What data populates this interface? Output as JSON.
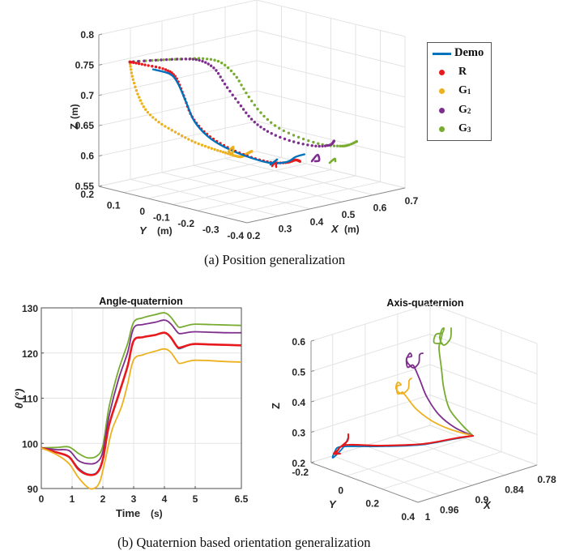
{
  "figure": {
    "caption_a": "(a) Position generalization",
    "caption_b": "(b) Quaternion based orientation generalization"
  },
  "colors": {
    "Demo": "#0072bd",
    "R": "#e8191c",
    "G1": "#edb120",
    "G2": "#7e2f8e",
    "G3": "#77ac30",
    "grid": "#e3e3e3",
    "axis": "#8c8c8c"
  },
  "legend": {
    "items": [
      {
        "key": "Demo",
        "label": "Demo",
        "sub": "",
        "marker": "line"
      },
      {
        "key": "R",
        "label": "R",
        "sub": "",
        "marker": "dot"
      },
      {
        "key": "G1",
        "label": "G",
        "sub": "1",
        "marker": "dot"
      },
      {
        "key": "G2",
        "label": "G",
        "sub": "2",
        "marker": "dot"
      },
      {
        "key": "G3",
        "label": "G",
        "sub": "3",
        "marker": "dot"
      }
    ]
  },
  "chart_data": [
    {
      "id": "position",
      "type": "line3d",
      "title": "",
      "xlabel": "X",
      "xunit": "(m)",
      "ylabel": "Y",
      "yunit": "(m)",
      "zlabel": "Z",
      "zunit": "(m)",
      "xlim": [
        0.2,
        0.7
      ],
      "ylim": [
        -0.4,
        0.2
      ],
      "zlim": [
        0.55,
        0.8
      ],
      "xticks": [
        "0.2",
        "0.3",
        "0.4",
        "0.5",
        "0.6",
        "0.7"
      ],
      "yticks": [
        "0.2",
        "0.1",
        "0",
        "-0.1",
        "-0.2",
        "-0.3",
        "-0.4"
      ],
      "zticks": [
        "0.55",
        "0.6",
        "0.65",
        "0.7",
        "0.75",
        "0.8"
      ],
      "grid": true,
      "legend": "right",
      "series": [
        {
          "name": "G1",
          "style": "dots",
          "points": [
            [
              0.22,
              0.1,
              0.763
            ],
            [
              0.22,
              0.09,
              0.74
            ],
            [
              0.23,
              0.08,
              0.71
            ],
            [
              0.24,
              0.06,
              0.685
            ],
            [
              0.26,
              0.03,
              0.665
            ],
            [
              0.29,
              0.0,
              0.648
            ],
            [
              0.32,
              -0.03,
              0.633
            ],
            [
              0.35,
              -0.06,
              0.622
            ],
            [
              0.38,
              -0.08,
              0.613
            ],
            [
              0.4,
              -0.1,
              0.607
            ],
            [
              0.41,
              -0.11,
              0.606
            ],
            [
              0.42,
              -0.12,
              0.611
            ],
            [
              0.43,
              -0.125,
              0.614
            ]
          ]
        },
        {
          "name": "G3",
          "style": "dots",
          "points": [
            [
              0.22,
              0.1,
              0.763
            ],
            [
              0.28,
              0.07,
              0.762
            ],
            [
              0.34,
              0.04,
              0.76
            ],
            [
              0.39,
              0.02,
              0.757
            ],
            [
              0.43,
              0.0,
              0.748
            ],
            [
              0.46,
              -0.02,
              0.725
            ],
            [
              0.48,
              -0.04,
              0.695
            ],
            [
              0.5,
              -0.07,
              0.665
            ],
            [
              0.53,
              -0.1,
              0.64
            ],
            [
              0.57,
              -0.14,
              0.622
            ],
            [
              0.61,
              -0.18,
              0.61
            ],
            [
              0.64,
              -0.21,
              0.607
            ],
            [
              0.66,
              -0.22,
              0.607
            ],
            [
              0.68,
              -0.23,
              0.612
            ]
          ]
        },
        {
          "name": "G2",
          "style": "dots",
          "points": [
            [
              0.22,
              0.1,
              0.763
            ],
            [
              0.28,
              0.07,
              0.762
            ],
            [
              0.34,
              0.04,
              0.76
            ],
            [
              0.38,
              0.02,
              0.755
            ],
            [
              0.41,
              0.0,
              0.74
            ],
            [
              0.43,
              -0.02,
              0.712
            ],
            [
              0.45,
              -0.05,
              0.682
            ],
            [
              0.47,
              -0.08,
              0.655
            ],
            [
              0.5,
              -0.11,
              0.635
            ],
            [
              0.54,
              -0.15,
              0.62
            ],
            [
              0.58,
              -0.19,
              0.612
            ],
            [
              0.61,
              -0.21,
              0.612
            ],
            [
              0.62,
              -0.215,
              0.618
            ]
          ]
        },
        {
          "name": "R",
          "style": "dots",
          "points": [
            [
              0.22,
              0.1,
              0.763
            ],
            [
              0.25,
              0.08,
              0.757
            ],
            [
              0.29,
              0.05,
              0.748
            ],
            [
              0.31,
              0.03,
              0.735
            ],
            [
              0.32,
              0.01,
              0.705
            ],
            [
              0.33,
              -0.01,
              0.672
            ],
            [
              0.35,
              -0.04,
              0.645
            ],
            [
              0.38,
              -0.08,
              0.624
            ],
            [
              0.42,
              -0.12,
              0.607
            ],
            [
              0.46,
              -0.16,
              0.596
            ],
            [
              0.49,
              -0.19,
              0.595
            ],
            [
              0.51,
              -0.2,
              0.598
            ],
            [
              0.52,
              -0.205,
              0.595
            ]
          ]
        },
        {
          "name": "Demo",
          "style": "line",
          "points": [
            [
              0.27,
              0.07,
              0.748
            ],
            [
              0.3,
              0.04,
              0.74
            ],
            [
              0.31,
              0.02,
              0.725
            ],
            [
              0.32,
              0.0,
              0.695
            ],
            [
              0.33,
              -0.02,
              0.665
            ],
            [
              0.35,
              -0.05,
              0.64
            ],
            [
              0.38,
              -0.08,
              0.622
            ],
            [
              0.42,
              -0.12,
              0.606
            ],
            [
              0.46,
              -0.16,
              0.595
            ],
            [
              0.49,
              -0.19,
              0.596
            ],
            [
              0.51,
              -0.2,
              0.603
            ],
            [
              0.53,
              -0.21,
              0.606
            ]
          ]
        }
      ]
    },
    {
      "id": "angle",
      "type": "line",
      "title": "Angle-quaternion",
      "xlabel": "Time",
      "xunit": "(s)",
      "ylabel": "θ (°)",
      "xlim": [
        0,
        6.5
      ],
      "ylim": [
        90,
        130
      ],
      "xticks": [
        0,
        1,
        2,
        3,
        4,
        5,
        6.5
      ],
      "xtick_labels": [
        "0",
        "1",
        "2",
        "3",
        "4",
        "5",
        "6.5"
      ],
      "yticks": [
        90,
        100,
        110,
        120,
        130
      ],
      "grid": true,
      "series": [
        {
          "name": "G3",
          "x": [
            0,
            0.5,
            0.9,
            1.2,
            1.5,
            1.8,
            2.0,
            2.2,
            2.5,
            2.8,
            3.0,
            3.3,
            3.7,
            4.0,
            4.2,
            4.4,
            4.5,
            4.8,
            5.0,
            5.5,
            6.0,
            6.5
          ],
          "y": [
            99,
            99.1,
            99.2,
            97.8,
            96.8,
            97.2,
            99.5,
            108,
            116,
            122,
            126.8,
            127.8,
            128.5,
            128.9,
            128.0,
            126.2,
            125.7,
            126.2,
            126.4,
            126.3,
            126.2,
            126.1
          ]
        },
        {
          "name": "G2",
          "x": [
            0,
            0.5,
            0.9,
            1.2,
            1.5,
            1.8,
            2.0,
            2.2,
            2.5,
            2.8,
            3.0,
            3.3,
            3.7,
            4.0,
            4.2,
            4.4,
            4.5,
            4.8,
            5.0,
            5.5,
            6.0,
            6.5
          ],
          "y": [
            99,
            98.6,
            98.4,
            96.2,
            95.5,
            95.8,
            98.2,
            106,
            114,
            120,
            125.5,
            126.3,
            126.8,
            127.3,
            126.5,
            124.8,
            124.3,
            124.6,
            124.7,
            124.6,
            124.5,
            124.5
          ]
        },
        {
          "name": "Demo",
          "x": [
            0,
            0.5,
            0.9,
            1.2,
            1.5,
            1.8,
            2.0,
            2.2,
            2.5,
            2.8,
            3.0,
            3.3,
            3.7,
            4.0,
            4.2,
            4.4,
            4.5,
            4.8,
            5.0,
            5.5,
            6.0,
            6.5
          ],
          "y": [
            99,
            98.0,
            97.0,
            94.5,
            93.2,
            93.5,
            96.5,
            104,
            110.5,
            117,
            122.7,
            123.5,
            124.0,
            124.5,
            123.5,
            121.5,
            121.0,
            121.8,
            122.0,
            121.9,
            121.8,
            121.7
          ]
        },
        {
          "name": "R",
          "x": [
            0,
            0.5,
            0.9,
            1.2,
            1.5,
            1.8,
            2.0,
            2.2,
            2.5,
            2.8,
            3.0,
            3.3,
            3.7,
            4.0,
            4.2,
            4.4,
            4.5,
            4.8,
            5.0,
            5.5,
            6.0,
            6.5
          ],
          "y": [
            99,
            98.0,
            97.0,
            94.3,
            93.1,
            93.4,
            96.5,
            104,
            110.5,
            117,
            122.7,
            123.5,
            124.0,
            124.5,
            123.5,
            121.5,
            121.2,
            121.8,
            122.0,
            121.9,
            121.8,
            121.7
          ]
        },
        {
          "name": "G1",
          "x": [
            0,
            0.5,
            0.9,
            1.2,
            1.5,
            1.7,
            1.9,
            2.1,
            2.3,
            2.6,
            2.8,
            3.0,
            3.3,
            3.7,
            4.0,
            4.2,
            4.4,
            4.5,
            4.8,
            5.0,
            5.5,
            6.0,
            6.5
          ],
          "y": [
            99,
            97.5,
            95.5,
            92.5,
            90.3,
            90.0,
            91.5,
            97,
            103,
            108,
            113,
            118.5,
            119.6,
            120.4,
            120.9,
            120.2,
            118.3,
            117.7,
            118.2,
            118.4,
            118.3,
            118.1,
            118.0
          ]
        }
      ]
    },
    {
      "id": "axis",
      "type": "line3d",
      "title": "Axis-quaternion",
      "xlabel": "X",
      "ylabel": "Y",
      "zlabel": "Z",
      "xlim": [
        0.78,
        1
      ],
      "ylim": [
        -0.2,
        0.4
      ],
      "zlim": [
        0.2,
        0.6
      ],
      "xticks": [
        "1",
        "0.96",
        "0.9",
        "0.84",
        "0.78"
      ],
      "yticks": [
        "-0.2",
        "0",
        "0.2",
        "0.4"
      ],
      "zticks": [
        "0.2",
        "0.3",
        "0.4",
        "0.5",
        "0.6"
      ],
      "grid": true,
      "series": [
        {
          "name": "G3",
          "style": "line",
          "start": "join",
          "end_loop": true
        },
        {
          "name": "G2",
          "style": "line",
          "start": "join",
          "end_loop": true
        },
        {
          "name": "G1",
          "style": "line",
          "start": "join",
          "end_loop": true
        },
        {
          "name": "Demo",
          "style": "line"
        },
        {
          "name": "R",
          "style": "line"
        }
      ]
    }
  ]
}
